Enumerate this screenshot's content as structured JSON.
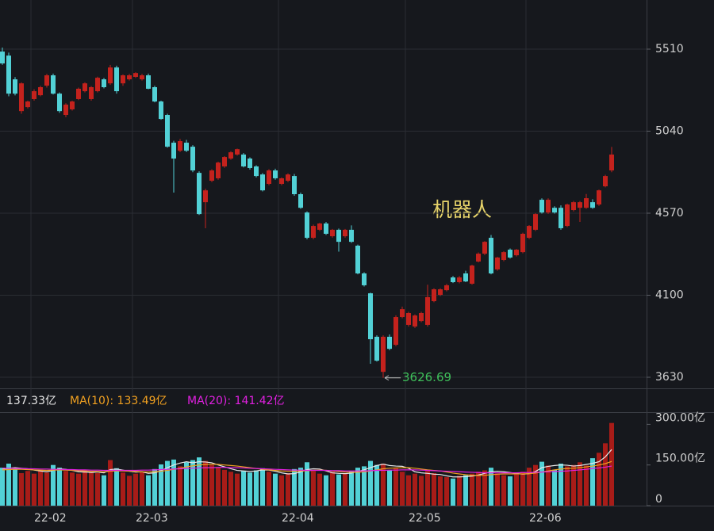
{
  "chart_data": [
    {
      "type": "candlestick",
      "title": "机器人",
      "annotation": {
        "text": "3626.69",
        "value": 3626.69,
        "index": 60
      },
      "up_color": "#c4221d",
      "down_color": "#52d1d6",
      "grid": true,
      "ylim": [
        3566.5,
        5791.5
      ],
      "yticks": [
        3630,
        4100,
        4570,
        5040,
        5510
      ],
      "xticks": [
        {
          "value": 5,
          "label": "22-02"
        },
        {
          "value": 21,
          "label": "22-03"
        },
        {
          "value": 44,
          "label": "22-04"
        },
        {
          "value": 64,
          "label": "22-05"
        },
        {
          "value": 83,
          "label": "22-06"
        }
      ],
      "open": [
        5496,
        5473,
        5337,
        5155,
        5178,
        5224,
        5246,
        5301,
        5360,
        5255,
        5133,
        5165,
        5224,
        5269,
        5224,
        5269,
        5337,
        5314,
        5405,
        5314,
        5337,
        5351,
        5337,
        5360,
        5292,
        5210,
        5133,
        4974,
        4928,
        4974,
        4951,
        4801,
        4633,
        4756,
        4770,
        4838,
        4883,
        4906,
        4906,
        4883,
        4838,
        4792,
        4738,
        4815,
        4738,
        4756,
        4783,
        4679,
        4574,
        4429,
        4475,
        4511,
        4438,
        4475,
        4438,
        4475,
        4384,
        4225,
        4111,
        3862,
        3661,
        3862,
        3816,
        3975,
        3930,
        3921,
        3952,
        3930,
        4066,
        4102,
        4129,
        4202,
        4175,
        4225,
        4166,
        4293,
        4338,
        4429,
        4248,
        4302,
        4361,
        4329,
        4347,
        4429,
        4475,
        4647,
        4574,
        4601,
        4601,
        4497,
        4588,
        4601,
        4601,
        4633,
        4620,
        4724,
        4815
      ],
      "high": [
        5519,
        5490,
        5350,
        5320,
        5215,
        5280,
        5300,
        5368,
        5370,
        5262,
        5200,
        5215,
        5290,
        5320,
        5298,
        5352,
        5345,
        5420,
        5415,
        5365,
        5368,
        5378,
        5368,
        5370,
        5300,
        5215,
        5140,
        4985,
        4995,
        4990,
        4960,
        4810,
        4710,
        4822,
        4865,
        4897,
        4925,
        4940,
        4915,
        4890,
        4845,
        4800,
        4822,
        4825,
        4775,
        4798,
        4795,
        4688,
        4580,
        4505,
        4515,
        4520,
        4480,
        4482,
        4480,
        4500,
        4390,
        4232,
        4115,
        3870,
        3870,
        3875,
        3985,
        4035,
        4005,
        3990,
        4005,
        4160,
        4140,
        4140,
        4165,
        4210,
        4210,
        4240,
        4275,
        4345,
        4410,
        4445,
        4320,
        4352,
        4368,
        4365,
        4458,
        4502,
        4570,
        4655,
        4655,
        4610,
        4615,
        4625,
        4640,
        4640,
        4680,
        4650,
        4705,
        4790,
        4950
      ],
      "low": [
        5420,
        5240,
        5245,
        5140,
        5170,
        5215,
        5240,
        5290,
        5250,
        5145,
        5120,
        5158,
        5218,
        5262,
        5215,
        5262,
        5285,
        5305,
        5255,
        5300,
        5330,
        5345,
        5330,
        5280,
        5205,
        5105,
        4945,
        4688,
        4920,
        4920,
        4805,
        4560,
        4484,
        4748,
        4762,
        4830,
        4876,
        4900,
        4832,
        4820,
        4775,
        4695,
        4730,
        4762,
        4730,
        4748,
        4670,
        4595,
        4420,
        4420,
        4468,
        4445,
        4430,
        4350,
        4430,
        4400,
        4220,
        4150,
        3707,
        3720,
        3626.69,
        3785,
        3808,
        3968,
        3920,
        3912,
        3945,
        3920,
        4060,
        4095,
        4122,
        4170,
        4168,
        4175,
        4160,
        4288,
        4330,
        4220,
        4240,
        4295,
        4310,
        4322,
        4340,
        4422,
        4468,
        4568,
        4566,
        4568,
        4475,
        4490,
        4580,
        4520,
        4595,
        4595,
        4612,
        4718,
        4805
      ],
      "close": [
        5428,
        5255,
        5255,
        5314,
        5210,
        5269,
        5292,
        5360,
        5255,
        5155,
        5192,
        5210,
        5283,
        5314,
        5292,
        5346,
        5292,
        5405,
        5269,
        5360,
        5360,
        5373,
        5360,
        5283,
        5210,
        5110,
        4951,
        4883,
        4983,
        4928,
        4815,
        4565,
        4701,
        4815,
        4860,
        4892,
        4919,
        4937,
        4838,
        4829,
        4783,
        4701,
        4815,
        4770,
        4770,
        4792,
        4679,
        4601,
        4429,
        4497,
        4511,
        4452,
        4475,
        4406,
        4475,
        4406,
        4225,
        4157,
        3848,
        3725,
        3862,
        3793,
        3975,
        4020,
        3998,
        3984,
        3998,
        4089,
        4134,
        4134,
        4157,
        4175,
        4202,
        4179,
        4270,
        4338,
        4406,
        4225,
        4316,
        4347,
        4316,
        4361,
        4452,
        4497,
        4565,
        4574,
        4647,
        4574,
        4484,
        4620,
        4633,
        4633,
        4656,
        4601,
        4701,
        4783,
        4906
      ]
    },
    {
      "type": "bar",
      "ylim": [
        0,
        345
      ],
      "yticks": [
        0,
        {
          "value": 150,
          "label": "150.00亿"
        },
        {
          "value": 300,
          "label": "300.00亿"
        }
      ],
      "values": [
        140,
        155,
        135,
        120,
        128,
        118,
        132,
        122,
        150,
        140,
        128,
        122,
        118,
        130,
        125,
        120,
        112,
        168,
        138,
        122,
        110,
        118,
        124,
        112,
        135,
        152,
        165,
        170,
        145,
        160,
        168,
        178,
        165,
        150,
        140,
        132,
        125,
        118,
        128,
        122,
        130,
        138,
        125,
        118,
        112,
        120,
        135,
        140,
        160,
        128,
        118,
        112,
        125,
        115,
        120,
        128,
        140,
        145,
        165,
        150,
        155,
        130,
        140,
        125,
        112,
        118,
        110,
        128,
        120,
        108,
        105,
        100,
        110,
        112,
        118,
        125,
        130,
        140,
        118,
        112,
        108,
        115,
        125,
        140,
        150,
        162,
        148,
        132,
        155,
        145,
        150,
        160,
        148,
        175,
        195,
        230,
        305
      ],
      "series": [
        {
          "name": "137.33亿",
          "color": "#e8e8e8",
          "values": [
            135,
            138,
            140,
            138,
            136,
            131,
            128,
            125,
            130,
            136,
            134,
            130,
            125,
            124,
            122,
            124,
            121,
            133,
            135,
            131,
            127,
            124,
            125,
            119,
            121,
            129,
            140,
            150,
            157,
            162,
            158,
            162,
            161,
            158,
            150,
            143,
            136,
            130,
            128,
            126,
            128,
            132,
            131,
            127,
            121,
            117,
            118,
            125,
            133,
            136,
            135,
            128,
            121,
            119,
            118,
            120,
            126,
            132,
            140,
            148,
            153,
            148,
            146,
            145,
            138,
            125,
            121,
            119,
            116,
            115,
            110,
            106,
            106,
            107,
            109,
            113,
            119,
            125,
            127,
            125,
            122,
            119,
            116,
            118,
            126,
            140,
            145,
            148,
            150,
            149,
            146,
            148,
            152,
            156,
            162,
            180,
            207
          ]
        },
        {
          "name": "MA(10): 133.49亿",
          "color": "#f0a020",
          "values": [
            132,
            133,
            134,
            134,
            133,
            132,
            131,
            130,
            131,
            132,
            131,
            130,
            129,
            128,
            127,
            126,
            125,
            127,
            128,
            128,
            127,
            126,
            125,
            124,
            125,
            127,
            130,
            134,
            138,
            143,
            147,
            150,
            152,
            153,
            152,
            150,
            148,
            146,
            143,
            140,
            137,
            134,
            132,
            130,
            128,
            127,
            127,
            128,
            129,
            130,
            131,
            130,
            128,
            126,
            124,
            123,
            123,
            125,
            128,
            132,
            136,
            138,
            139,
            140,
            140,
            138,
            135,
            132,
            130,
            128,
            124,
            120,
            117,
            114,
            112,
            111,
            112,
            114,
            116,
            117,
            117,
            117,
            117,
            118,
            120,
            124,
            128,
            132,
            135,
            137,
            138,
            140,
            143,
            146,
            150,
            155,
            163
          ]
        },
        {
          "name": "MA(20): 141.42亿",
          "color": "#e020e0",
          "values": [
            138,
            138,
            137,
            137,
            136,
            136,
            135,
            135,
            134,
            134,
            133,
            133,
            132,
            132,
            131,
            131,
            130,
            130,
            130,
            130,
            130,
            130,
            131,
            131,
            132,
            133,
            134,
            135,
            136,
            137,
            138,
            139,
            140,
            140,
            141,
            141,
            140,
            140,
            139,
            138,
            137,
            136,
            135,
            134,
            133,
            132,
            131,
            131,
            130,
            130,
            130,
            130,
            129,
            129,
            128,
            128,
            128,
            128,
            129,
            130,
            130,
            131,
            131,
            132,
            132,
            132,
            131,
            130,
            129,
            128,
            127,
            126,
            125,
            124,
            123,
            122,
            121,
            121,
            121,
            121,
            121,
            121,
            122,
            122,
            123,
            124,
            125,
            126,
            127,
            128,
            130,
            132,
            134,
            137,
            139,
            142,
            146
          ]
        }
      ]
    }
  ]
}
